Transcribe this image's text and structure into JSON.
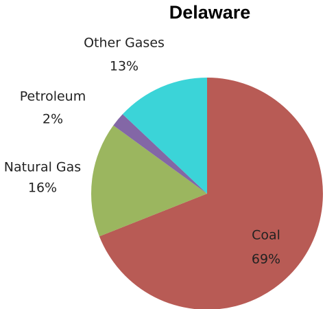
{
  "chart_data": {
    "type": "pie",
    "title": "Delaware",
    "categories": [
      "Coal",
      "Natural Gas",
      "Petroleum",
      "Other Gases"
    ],
    "values": [
      69,
      16,
      2,
      13
    ],
    "value_labels": [
      "69%",
      "16%",
      "2%",
      "13%"
    ],
    "colors": [
      "#b85b55",
      "#9bb65f",
      "#8367a6",
      "#3bd4d8"
    ]
  }
}
